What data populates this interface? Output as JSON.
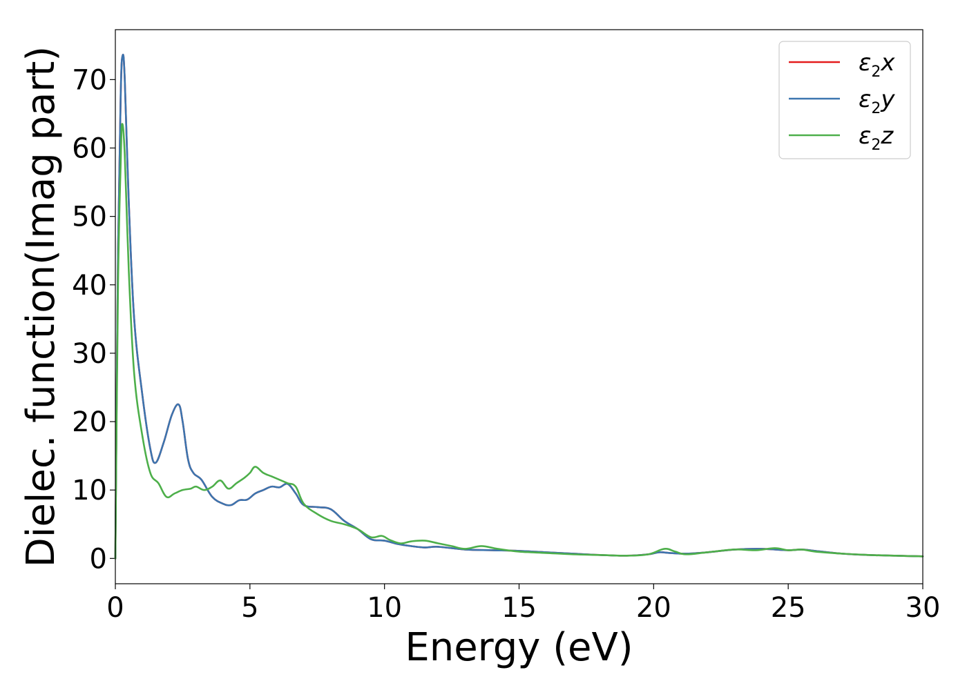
{
  "chart_data": {
    "type": "line",
    "title": "",
    "xlabel": "Energy (eV)",
    "ylabel": "Dielec. function(Imag part)",
    "xlim": [
      0,
      30
    ],
    "ylim": [
      -3.7,
      77.3
    ],
    "xticks": [
      0,
      5,
      10,
      15,
      20,
      25,
      30
    ],
    "yticks": [
      0,
      10,
      20,
      30,
      40,
      50,
      60,
      70
    ],
    "grid": false,
    "legend_position": "top-right",
    "series": [
      {
        "name": "ε2x",
        "legend_symbol": "ε",
        "legend_sub": "2",
        "legend_var": "x",
        "color": "#e41a1c",
        "x": [
          0,
          0.1,
          0.2,
          0.27,
          0.35,
          0.5,
          0.7,
          1.0,
          1.3,
          1.5,
          1.8,
          2.1,
          2.35,
          2.5,
          2.7,
          2.9,
          3.2,
          3.6,
          4.0,
          4.3,
          4.6,
          4.9,
          5.2,
          5.5,
          5.8,
          6.1,
          6.4,
          6.7,
          7.0,
          7.5,
          8.0,
          8.5,
          9.0,
          9.5,
          10.0,
          10.5,
          11.0,
          11.5,
          12.0,
          13.0,
          14.0,
          15.0,
          16.0,
          17.0,
          18.0,
          19.0,
          19.8,
          20.2,
          20.6,
          21.2,
          22.0,
          23.0,
          24.0,
          25.0,
          25.5,
          26.0,
          27.0,
          28.0,
          29.0,
          30.0
        ],
        "values": [
          0,
          45,
          68,
          73.5,
          70,
          52,
          35,
          24,
          16,
          14,
          17,
          21,
          22.5,
          20,
          14.5,
          12.5,
          11.5,
          9,
          8,
          7.8,
          8.5,
          8.6,
          9.5,
          10,
          10.5,
          10.4,
          10.9,
          9.5,
          7.8,
          7.5,
          7.2,
          5.5,
          4.3,
          2.8,
          2.6,
          2.1,
          1.8,
          1.6,
          1.7,
          1.3,
          1.2,
          1.1,
          0.9,
          0.7,
          0.5,
          0.4,
          0.6,
          0.9,
          0.8,
          0.7,
          0.9,
          1.3,
          1.4,
          1.2,
          1.3,
          1.1,
          0.7,
          0.5,
          0.4,
          0.3
        ]
      },
      {
        "name": "ε2y",
        "legend_symbol": "ε",
        "legend_sub": "2",
        "legend_var": "y",
        "color": "#3b75af",
        "x": [
          0,
          0.1,
          0.2,
          0.27,
          0.35,
          0.5,
          0.7,
          1.0,
          1.3,
          1.5,
          1.8,
          2.1,
          2.35,
          2.5,
          2.7,
          2.9,
          3.2,
          3.6,
          4.0,
          4.3,
          4.6,
          4.9,
          5.2,
          5.5,
          5.8,
          6.1,
          6.4,
          6.7,
          7.0,
          7.5,
          8.0,
          8.5,
          9.0,
          9.5,
          10.0,
          10.5,
          11.0,
          11.5,
          12.0,
          13.0,
          14.0,
          15.0,
          16.0,
          17.0,
          18.0,
          19.0,
          19.8,
          20.2,
          20.6,
          21.2,
          22.0,
          23.0,
          24.0,
          25.0,
          25.5,
          26.0,
          27.0,
          28.0,
          29.0,
          30.0
        ],
        "values": [
          0,
          45,
          68,
          73.5,
          70,
          52,
          35,
          24,
          16,
          14,
          17,
          21,
          22.5,
          20,
          14.5,
          12.5,
          11.5,
          9,
          8,
          7.8,
          8.5,
          8.6,
          9.5,
          10,
          10.5,
          10.4,
          10.9,
          9.5,
          7.8,
          7.5,
          7.2,
          5.5,
          4.3,
          2.8,
          2.6,
          2.1,
          1.8,
          1.6,
          1.7,
          1.3,
          1.2,
          1.1,
          0.9,
          0.7,
          0.5,
          0.4,
          0.6,
          0.9,
          0.8,
          0.7,
          0.9,
          1.3,
          1.4,
          1.2,
          1.3,
          1.1,
          0.7,
          0.5,
          0.4,
          0.3
        ]
      },
      {
        "name": "ε2z",
        "legend_symbol": "ε",
        "legend_sub": "2",
        "legend_var": "z",
        "color": "#4daf4a",
        "x": [
          0,
          0.1,
          0.2,
          0.25,
          0.35,
          0.5,
          0.7,
          1.0,
          1.3,
          1.6,
          1.9,
          2.2,
          2.5,
          2.8,
          3.0,
          3.3,
          3.6,
          3.9,
          4.2,
          4.5,
          4.8,
          5.0,
          5.2,
          5.5,
          5.8,
          6.1,
          6.4,
          6.7,
          7.0,
          7.5,
          8.0,
          8.5,
          9.0,
          9.5,
          9.9,
          10.2,
          10.6,
          11.0,
          11.5,
          12.0,
          12.5,
          13.0,
          13.6,
          14.2,
          15.0,
          16.0,
          17.0,
          18.0,
          19.0,
          19.8,
          20.4,
          20.8,
          21.2,
          22.0,
          23.0,
          23.8,
          24.5,
          25.0,
          25.5,
          26.0,
          27.0,
          28.0,
          29.0,
          30.0
        ],
        "values": [
          0,
          40,
          58,
          63.5,
          59,
          42,
          27,
          18,
          12.5,
          11,
          9,
          9.5,
          10,
          10.2,
          10.5,
          10,
          10.5,
          11.4,
          10.2,
          11,
          11.8,
          12.5,
          13.4,
          12.5,
          12,
          11.5,
          11,
          10.5,
          8,
          6.5,
          5.5,
          5,
          4.3,
          3.1,
          3.3,
          2.7,
          2.2,
          2.5,
          2.6,
          2.2,
          1.8,
          1.4,
          1.8,
          1.4,
          1.0,
          0.8,
          0.6,
          0.5,
          0.4,
          0.6,
          1.4,
          1.0,
          0.6,
          0.9,
          1.3,
          1.2,
          1.5,
          1.2,
          1.3,
          1.0,
          0.7,
          0.5,
          0.4,
          0.3
        ]
      }
    ]
  }
}
